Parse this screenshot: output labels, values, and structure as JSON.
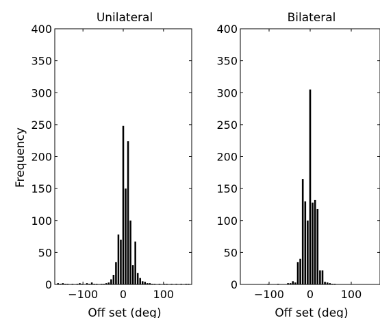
{
  "ylabel": "Frequency",
  "chart_data": [
    {
      "type": "bar",
      "title": "Unilateral",
      "xlabel": "Off set (deg)",
      "ylabel": "Frequency",
      "xlim": [
        -170,
        170
      ],
      "ylim": [
        0,
        400
      ],
      "bin_width": 6,
      "xticks": [
        -100,
        0,
        100
      ],
      "yticks": [
        0,
        50,
        100,
        150,
        200,
        250,
        300,
        350,
        400
      ],
      "grid": false,
      "x": [
        -162,
        -156,
        -150,
        -144,
        -138,
        -132,
        -126,
        -120,
        -114,
        -108,
        -102,
        -96,
        -90,
        -84,
        -78,
        -72,
        -66,
        -60,
        -54,
        -48,
        -42,
        -36,
        -30,
        -24,
        -18,
        -12,
        -6,
        0,
        6,
        12,
        18,
        24,
        30,
        36,
        42,
        48,
        54,
        60,
        66,
        72,
        78,
        84,
        90,
        96,
        102,
        108,
        114,
        120,
        126,
        132,
        138,
        144,
        150,
        156,
        162
      ],
      "values": [
        2,
        1,
        2,
        1,
        1,
        0,
        1,
        0,
        1,
        2,
        1,
        0,
        2,
        1,
        3,
        1,
        1,
        0,
        1,
        1,
        2,
        3,
        8,
        15,
        35,
        78,
        70,
        248,
        150,
        224,
        100,
        30,
        67,
        18,
        10,
        5,
        4,
        2,
        2,
        1,
        1,
        0,
        1,
        0,
        1,
        1,
        0,
        1,
        0,
        1,
        0,
        1,
        0,
        1,
        1
      ]
    },
    {
      "type": "bar",
      "title": "Bilateral",
      "xlabel": "Off set (deg)",
      "ylabel": "",
      "xlim": [
        -170,
        170
      ],
      "ylim": [
        0,
        400
      ],
      "bin_width": 6,
      "xticks": [
        -100,
        0,
        100
      ],
      "yticks": [
        0,
        50,
        100,
        150,
        200,
        250,
        300,
        350,
        400
      ],
      "grid": false,
      "x": [
        -162,
        -156,
        -150,
        -144,
        -138,
        -132,
        -126,
        -120,
        -114,
        -108,
        -102,
        -96,
        -90,
        -84,
        -78,
        -72,
        -66,
        -60,
        -54,
        -48,
        -42,
        -36,
        -30,
        -24,
        -18,
        -12,
        -6,
        0,
        6,
        12,
        18,
        24,
        30,
        36,
        42,
        48,
        54,
        60,
        66,
        72,
        78,
        84,
        90,
        96,
        102,
        108,
        114,
        120,
        126,
        132,
        138,
        144,
        150,
        156,
        162
      ],
      "values": [
        0,
        0,
        0,
        0,
        0,
        0,
        0,
        0,
        0,
        0,
        1,
        0,
        0,
        0,
        1,
        0,
        0,
        0,
        2,
        2,
        5,
        3,
        35,
        40,
        165,
        130,
        100,
        305,
        128,
        132,
        118,
        22,
        22,
        4,
        3,
        2,
        1,
        1,
        0,
        0,
        0,
        0,
        0,
        0,
        0,
        0,
        0,
        0,
        0,
        0,
        0,
        0,
        0,
        0,
        0
      ]
    }
  ]
}
